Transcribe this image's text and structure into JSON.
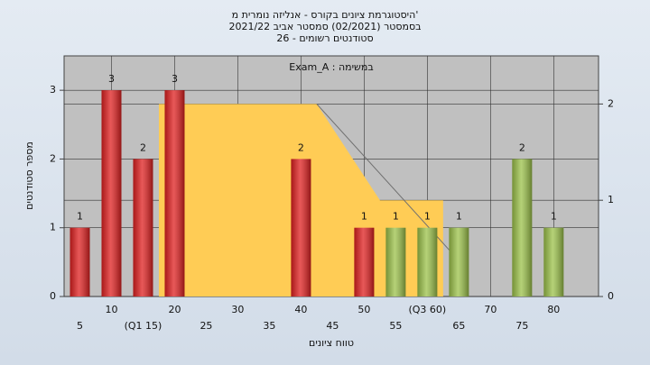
{
  "chart_data": {
    "type": "bar",
    "title": [
      "היסטוגרמת ציונים בקורס - אנליזה נומרית מ'",
      "בסמסטר (02/2021) סמסטר אביב 2021/22",
      "סטודנטים רשומים - 26"
    ],
    "subtitle": "Exam_A : במשימה",
    "x_label": "טווח ציונים",
    "y_label": "מספר סטודנטים",
    "categories": [
      "5",
      "10",
      "(Q1 15)",
      "20",
      "25",
      "30",
      "35",
      "40",
      "45",
      "50",
      "55",
      "(Q3 60)",
      "65",
      "70",
      "75",
      "80"
    ],
    "values": [
      1,
      3,
      2,
      3,
      null,
      null,
      null,
      2,
      null,
      1,
      1,
      1,
      1,
      null,
      2,
      1
    ],
    "colors": [
      "#e02020",
      "#e02020",
      "#e02020",
      "#e02020",
      null,
      null,
      null,
      "#e02020",
      null,
      "#e02020",
      "#9cc24a",
      "#9cc24a",
      "#9cc24a",
      null,
      "#9cc24a",
      "#9cc24a"
    ],
    "xlim": [
      0,
      84.6
    ],
    "ylim": [
      0,
      3.5
    ],
    "yticks": [
      0,
      1,
      2,
      3
    ],
    "y2lim": [
      0,
      2.5
    ],
    "y2ticks": [
      0,
      1,
      2
    ],
    "overlays": [
      {
        "type": "area",
        "axis": "y2",
        "color": "#ffcc55",
        "x": [
          15,
          40,
          50,
          60
        ],
        "values": [
          2,
          2,
          1,
          1
        ]
      },
      {
        "type": "line",
        "axis": "y2",
        "color": "#707070",
        "x": [
          40,
          63.5
        ],
        "values": [
          2,
          0.3
        ]
      }
    ],
    "grid": true
  }
}
